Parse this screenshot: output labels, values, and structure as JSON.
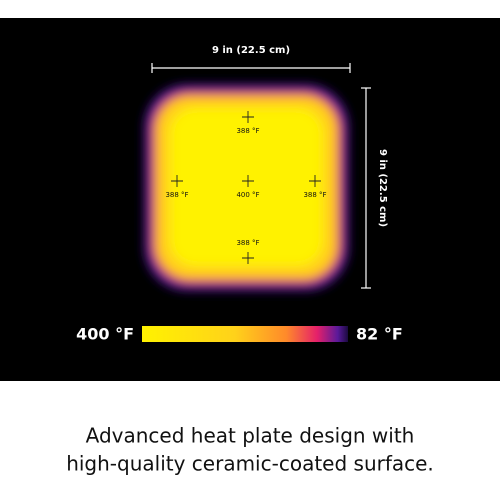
{
  "dimension_width": "9 in (22.5 cm)",
  "dimension_height": "9 in (22.5 cm)",
  "points": [
    {
      "label": "388 °F"
    },
    {
      "label": "388 °F"
    },
    {
      "label": "400 °F"
    },
    {
      "label": "388 °F"
    },
    {
      "label": "388 °F"
    }
  ],
  "scale": {
    "max_label": "400 °F",
    "min_label": "82 °F"
  },
  "caption": [
    "Advanced heat plate design with",
    "high-quality ceramic-coated surface."
  ]
}
